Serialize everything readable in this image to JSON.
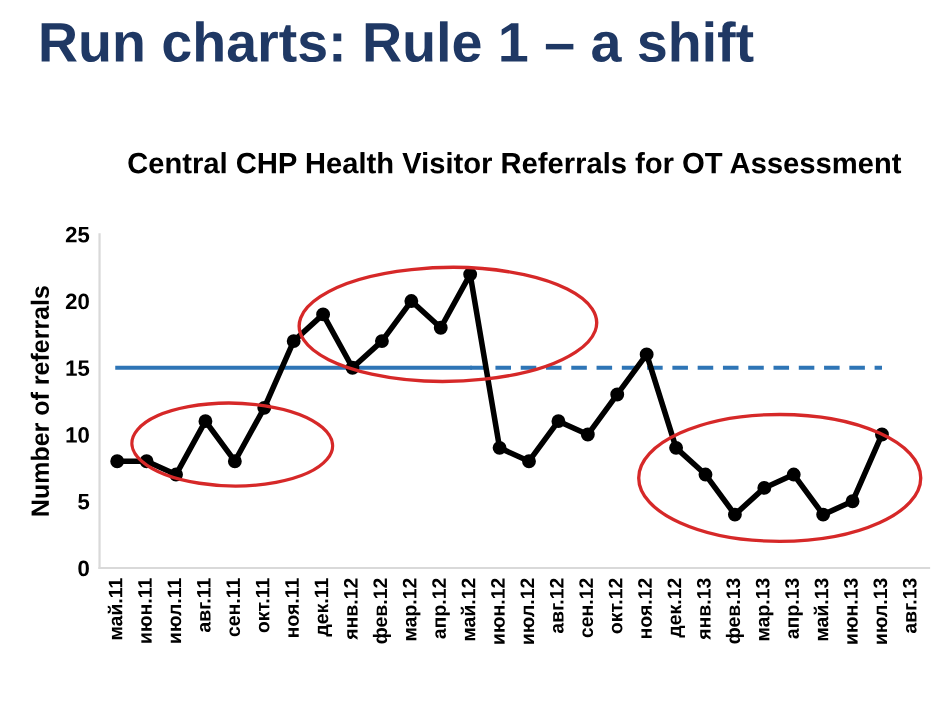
{
  "chart_data": {
    "type": "line",
    "title": "Run charts: Rule 1 – a shift",
    "subtitle": "Central CHP Health Visitor Referrals for OT Assessment",
    "ylabel": "Number of referrals",
    "categories": [
      "май.11",
      "июн.11",
      "июл.11",
      "авг.11",
      "сен.11",
      "окт.11",
      "ноя.11",
      "дек.11",
      "янв.12",
      "фев.12",
      "мар.12",
      "апр.12",
      "май.12",
      "июн.12",
      "июл.12",
      "авг.12",
      "сен.12",
      "окт.12",
      "ноя.12",
      "дек.12",
      "янв.13",
      "фев.13",
      "мар.13",
      "апр.13",
      "май.13",
      "июн.13",
      "июл.13",
      "авг.13"
    ],
    "series": [
      {
        "color": "#000000",
        "marker": "circle",
        "line_style": "solid",
        "values": [
          8,
          8,
          7,
          11,
          8,
          12,
          17,
          19,
          15,
          17,
          20,
          18,
          22,
          9,
          8,
          11,
          10,
          13,
          16,
          9,
          7,
          4,
          6,
          7,
          4,
          5,
          10,
          null
        ]
      },
      {
        "color": "#2e75b6",
        "marker": "none",
        "line_style": "solid",
        "values": [
          15,
          15,
          15,
          15,
          15,
          15,
          15,
          15,
          15,
          15,
          15,
          15,
          15,
          null,
          null,
          null,
          null,
          null,
          null,
          null,
          null,
          null,
          null,
          null,
          null,
          null,
          null,
          null
        ]
      },
      {
        "color": "#2e75b6",
        "marker": "none",
        "line_style": "dashed",
        "values": [
          null,
          null,
          null,
          null,
          null,
          null,
          null,
          null,
          null,
          null,
          null,
          null,
          15,
          15,
          15,
          15,
          15,
          15,
          15,
          15,
          15,
          15,
          15,
          15,
          15,
          15,
          15,
          null
        ]
      }
    ],
    "ylim": [
      0,
      25
    ],
    "yticks": [
      0,
      5,
      10,
      15,
      20,
      25
    ],
    "grid": false,
    "legend": false
  }
}
